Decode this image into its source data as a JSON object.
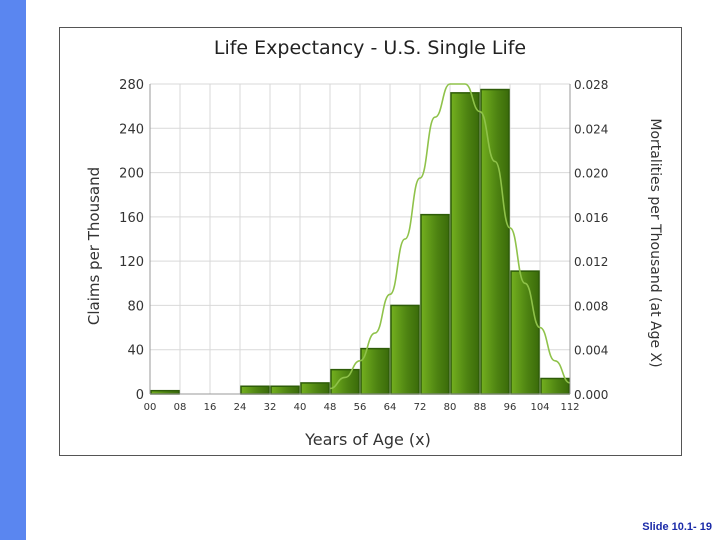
{
  "slide": {
    "footer": "Slide 10.1- 19"
  },
  "colors": {
    "sidebar": "#5a86f0",
    "bar_fill": "#4f8512",
    "bar_stroke": "#2e5c08",
    "curve": "#8fc24a",
    "grid": "#d9d9d9",
    "text": "#333333"
  },
  "chart_data": {
    "type": "bar",
    "title": "Life Expectancy - U.S. Single Life",
    "xlabel": "Years of Age (x)",
    "ylabel": "Claims per Thousand",
    "y2label": "Mortalities per Thousand (at Age X)",
    "ylim": [
      0,
      280
    ],
    "y2lim": [
      0,
      0.028
    ],
    "yticks": [
      "0",
      "40",
      "80",
      "120",
      "160",
      "200",
      "240",
      "280"
    ],
    "y2ticks": [
      "0.000",
      "0.004",
      "0.008",
      "0.012",
      "0.016",
      "0.020",
      "0.024",
      "0.028"
    ],
    "x_tick_labels": [
      "00",
      "08",
      "16",
      "24",
      "32",
      "40",
      "48",
      "56",
      "64",
      "72",
      "80",
      "88",
      "96",
      "104",
      "112"
    ],
    "bin_edges": [
      0,
      8,
      16,
      24,
      32,
      40,
      48,
      56,
      64,
      72,
      80,
      88,
      96,
      104,
      112
    ],
    "series": [
      {
        "type": "bar",
        "values": [
          3,
          0,
          0,
          7,
          7,
          10,
          22,
          41,
          80,
          162,
          272,
          275,
          111,
          14
        ]
      },
      {
        "type": "line",
        "axis": "secondary",
        "x": [
          48,
          52,
          56,
          60,
          64,
          68,
          72,
          76,
          80,
          84,
          88,
          92,
          96,
          100,
          104,
          108,
          112
        ],
        "values": [
          0.0005,
          0.0015,
          0.003,
          0.0055,
          0.009,
          0.014,
          0.0195,
          0.025,
          0.028,
          0.028,
          0.0255,
          0.021,
          0.015,
          0.01,
          0.006,
          0.003,
          0.001
        ]
      }
    ],
    "grid": true
  }
}
